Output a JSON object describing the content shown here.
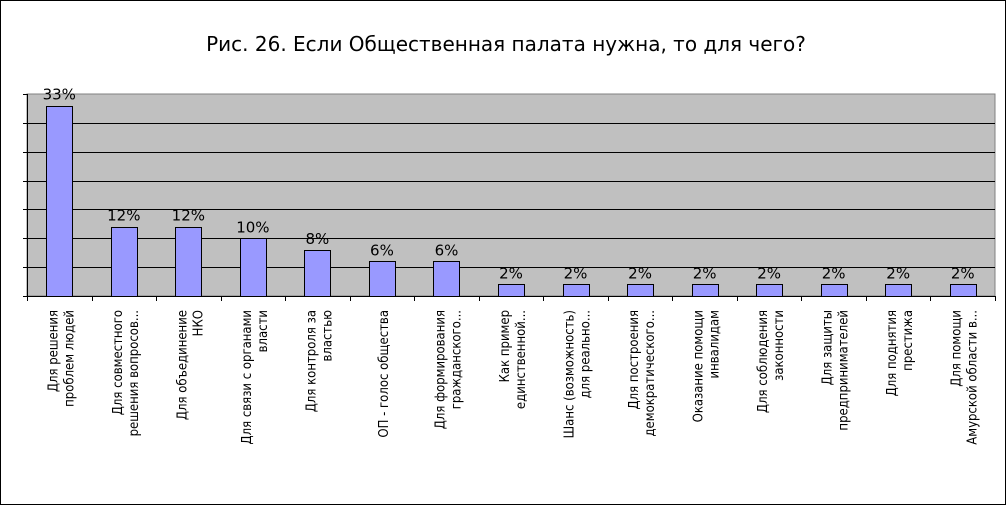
{
  "chart_data": {
    "type": "bar",
    "title": "Рис. 26. Если Общественная  палата нужна, то для чего?",
    "xlabel": "",
    "ylabel": "",
    "ylim": [
      0,
      35
    ],
    "grid": true,
    "legend": "none",
    "colors": {
      "bar_fill": "#9999ff",
      "bar_stroke": "#000000",
      "plot_bg": "#c0c0c0",
      "page_bg": "#ffffff"
    },
    "categories": [
      [
        "Для решения",
        "проблем людей"
      ],
      [
        "Для совместного",
        "решения вопросов..."
      ],
      [
        "Для объединение",
        "НКО"
      ],
      [
        "Для связи с органами",
        "власти"
      ],
      [
        "Для контроля за",
        "властью"
      ],
      [
        "ОП - голос общества"
      ],
      [
        "Для формирования",
        "гражданского..."
      ],
      [
        "Как пример",
        "единственной..."
      ],
      [
        "Шанс (возможность)",
        "для реально..."
      ],
      [
        "Для построения",
        "демократического..."
      ],
      [
        "Оказание помощи",
        "инвалидам"
      ],
      [
        "Для соблюдения",
        "законности"
      ],
      [
        "Для защиты",
        "предпринимателей"
      ],
      [
        "Для поднятия",
        "престижа"
      ],
      [
        "Для помощи",
        "Амурской области в..."
      ]
    ],
    "values": [
      33,
      12,
      12,
      10,
      8,
      6,
      6,
      2,
      2,
      2,
      2,
      2,
      2,
      2,
      2
    ],
    "value_labels": [
      "33%",
      "12%",
      "12%",
      "10%",
      "8%",
      "6%",
      "6%",
      "2%",
      "2%",
      "2%",
      "2%",
      "2%",
      "2%",
      "2%",
      "2%"
    ]
  }
}
